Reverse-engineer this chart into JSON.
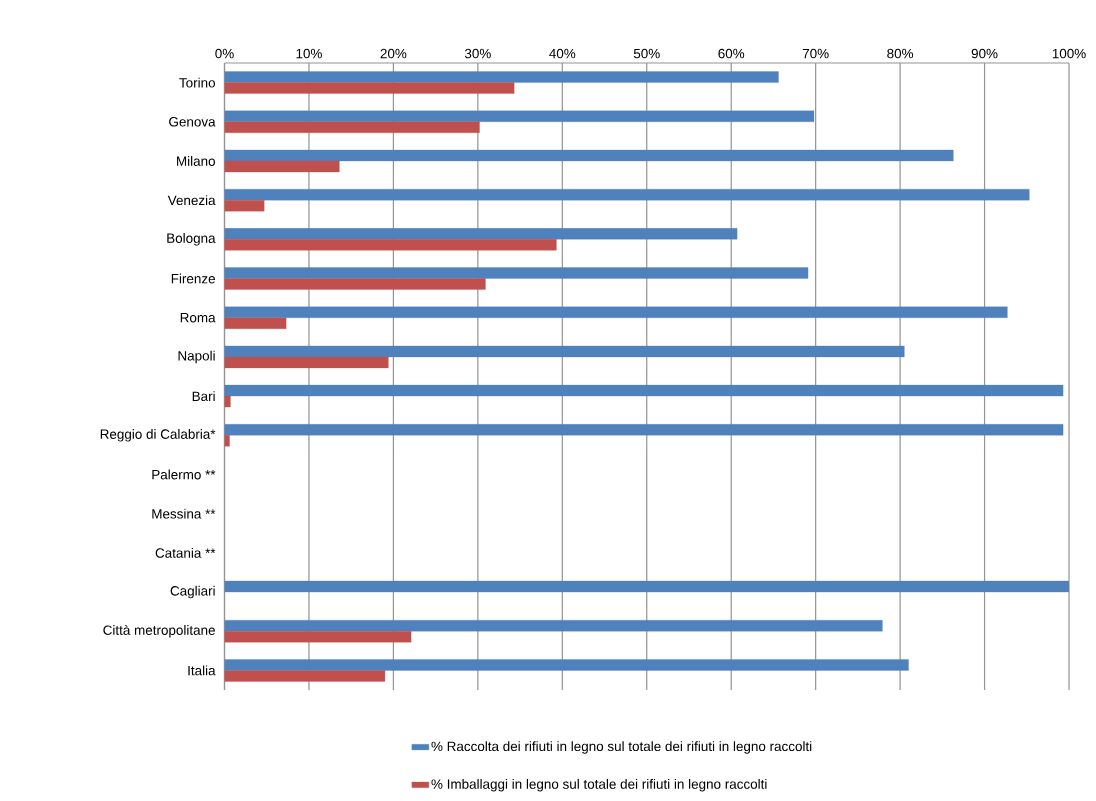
{
  "chart_data": {
    "type": "bar",
    "orientation": "horizontal",
    "categories": [
      "Torino",
      "Genova",
      "Milano",
      "Venezia",
      "Bologna",
      "Firenze",
      "Roma",
      "Napoli",
      "Bari",
      "Reggio di Calabria*",
      "Palermo **",
      "Messina **",
      "Catania **",
      "Cagliari",
      "Città metropolitane",
      "Italia"
    ],
    "series": [
      {
        "name": "% Raccolta dei rifiuti in legno sul totale dei rifiuti in legno raccolti",
        "color": "#4f81bd",
        "values": [
          65.6,
          69.8,
          86.3,
          95.3,
          60.7,
          69.1,
          92.7,
          80.5,
          99.3,
          99.3,
          null,
          null,
          null,
          100,
          77.9,
          81.0
        ]
      },
      {
        "name": "% Imballaggi in legno sul totale dei rifiuti in legno raccolti",
        "color": "#c0504d",
        "values": [
          34.3,
          30.2,
          13.6,
          4.7,
          39.3,
          30.9,
          7.3,
          19.4,
          0.7,
          0.6,
          null,
          null,
          null,
          null,
          22.1,
          19.0
        ]
      }
    ],
    "xlim": [
      0,
      100
    ],
    "xticks": [
      {
        "value": 0,
        "label": "0%"
      },
      {
        "value": 10,
        "label": "10%"
      },
      {
        "value": 20,
        "label": "20%"
      },
      {
        "value": 30,
        "label": "30%"
      },
      {
        "value": 40,
        "label": "40%"
      },
      {
        "value": 50,
        "label": "50%"
      },
      {
        "value": 60,
        "label": "60%"
      },
      {
        "value": 70,
        "label": "70%"
      },
      {
        "value": 80,
        "label": "80%"
      },
      {
        "value": 90,
        "label": "90%"
      },
      {
        "value": 100,
        "label": "100%"
      }
    ],
    "grid": "x",
    "legend": "bottom"
  }
}
